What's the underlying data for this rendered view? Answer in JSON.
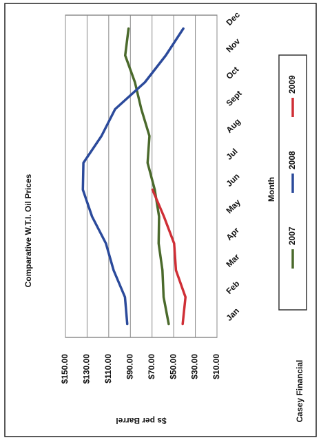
{
  "chart_data": {
    "type": "line",
    "title": "Comparative W.T.I. Oil Prices",
    "x_label": "Month",
    "y_label": "$s per Barrel",
    "source": "Casey Financial",
    "categories": [
      "Jan",
      "Feb",
      "Mar",
      "Apr",
      "May",
      "Jun",
      "Jul",
      "Aug",
      "Sept",
      "Oct",
      "Nov",
      "Dec"
    ],
    "series": [
      {
        "name": "2007",
        "color": "#4b6a2c",
        "values": [
          54.6,
          59.3,
          60.4,
          63.9,
          63.5,
          67.5,
          74.1,
          72.4,
          79.9,
          85.8,
          94.8,
          91.7
        ]
      },
      {
        "name": "2008",
        "color": "#2b4a9b",
        "values": [
          92.9,
          95.0,
          105.5,
          112.6,
          125.4,
          133.9,
          133.4,
          116.7,
          104.1,
          76.6,
          57.3,
          41.1
        ]
      },
      {
        "name": "2009",
        "color": "#cf2f36",
        "values": [
          41.7,
          39.1,
          47.9,
          49.6,
          59.0,
          69.6,
          null,
          null,
          null,
          null,
          null,
          null
        ]
      }
    ],
    "ylim": [
      10,
      150
    ],
    "yticks": [
      {
        "value": 10,
        "label": "$10.00"
      },
      {
        "value": 30,
        "label": "$30.00"
      },
      {
        "value": 50,
        "label": "$50.00"
      },
      {
        "value": 70,
        "label": "$70.00"
      },
      {
        "value": 90,
        "label": "$90.00"
      },
      {
        "value": 110,
        "label": "$110.00"
      },
      {
        "value": 130,
        "label": "$130.00"
      },
      {
        "value": 150,
        "label": "$150.00"
      }
    ],
    "grid": true,
    "legend": "bottom"
  }
}
